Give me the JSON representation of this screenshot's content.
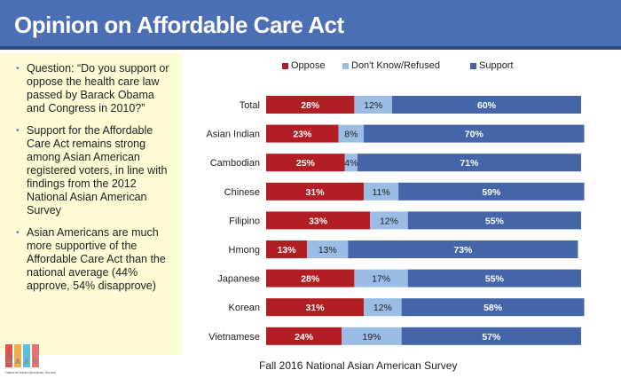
{
  "header": {
    "title": "Opinion on Affordable Care Act"
  },
  "sidebar": {
    "bullets": [
      "Question: “Do you support or oppose the health care law passed by Barack Obama and Congress in 2010?”",
      "Support for the Affordable Care Act remains strong among Asian American registered voters, in line with findings from the 2012 National Asian American Survey",
      "Asian Americans are much more supportive of the Affordable Care Act than the national average (44% approve, 54% disapprove)"
    ]
  },
  "footer": {
    "source": "Fall 2016 National Asian American Survey"
  },
  "logo": {
    "letters": [
      "N",
      "A",
      "A",
      "S"
    ],
    "tagline": "National Asian American Survey"
  },
  "colors": {
    "oppose": "#b11e23",
    "dontknow": "#9bbce4",
    "support": "#4466a8",
    "header": "#4a6fb5"
  },
  "chart_data": {
    "type": "bar",
    "orientation": "horizontal",
    "stacked": true,
    "categories": [
      "Total",
      "Asian Indian",
      "Cambodian",
      "Chinese",
      "Filipino",
      "Hmong",
      "Japanese",
      "Korean",
      "Vietnamese"
    ],
    "series": [
      {
        "name": "Oppose",
        "values": [
          28,
          23,
          25,
          31,
          33,
          13,
          28,
          31,
          24
        ]
      },
      {
        "name": "Don't Know/Refused",
        "values": [
          12,
          8,
          4,
          11,
          12,
          13,
          17,
          12,
          19
        ]
      },
      {
        "name": "Support",
        "values": [
          60,
          70,
          71,
          59,
          55,
          73,
          55,
          58,
          57
        ]
      }
    ],
    "labels": [
      [
        "28%",
        "12%",
        "60%"
      ],
      [
        "23%",
        "8%",
        "70%"
      ],
      [
        "25%",
        "4%",
        "71%"
      ],
      [
        "31%",
        "11%",
        "59%"
      ],
      [
        "33%",
        "12%",
        "55%"
      ],
      [
        "13%",
        "13%",
        "73%"
      ],
      [
        "28%",
        "17%",
        "55%"
      ],
      [
        "31%",
        "12%",
        "58%"
      ],
      [
        "24%",
        "19%",
        "57%"
      ]
    ],
    "xlim": [
      0,
      100
    ],
    "legend_position": "top",
    "title": "",
    "xlabel": "",
    "ylabel": ""
  }
}
